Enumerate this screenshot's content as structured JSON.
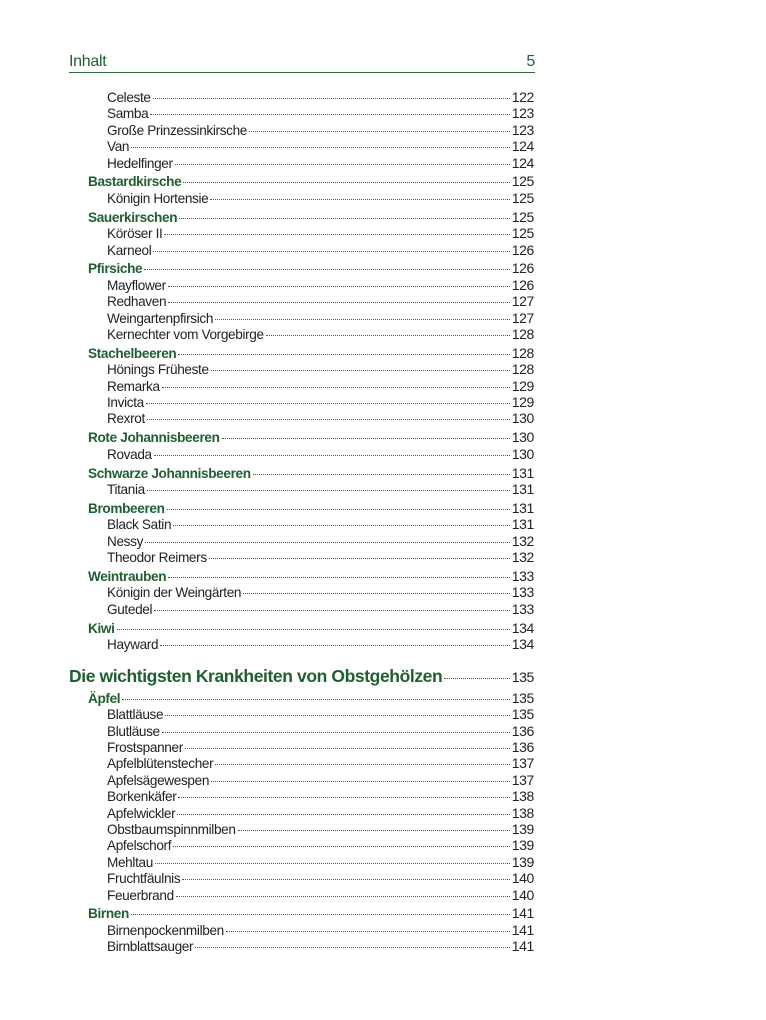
{
  "header": {
    "title": "Inhalt",
    "page_number": "5"
  },
  "colors": {
    "accent": "#1f5f30",
    "rule": "#2e6e3e"
  },
  "toc": [
    {
      "level": "sub",
      "title": "Celeste",
      "page": "122"
    },
    {
      "level": "sub",
      "title": "Samba",
      "page": "123"
    },
    {
      "level": "sub",
      "title": "Große Prinzessinkirsche",
      "page": "123"
    },
    {
      "level": "sub",
      "title": "Van",
      "page": "124"
    },
    {
      "level": "sub",
      "title": "Hedelfinger",
      "page": "124"
    },
    {
      "level": "grp",
      "title": "Bastardkirsche",
      "page": "125"
    },
    {
      "level": "sub",
      "title": "Königin Hortensie",
      "page": "125"
    },
    {
      "level": "grp",
      "title": "Sauerkirschen",
      "page": "125"
    },
    {
      "level": "sub",
      "title": "Köröser II",
      "page": "125"
    },
    {
      "level": "sub",
      "title": "Karneol",
      "page": "126"
    },
    {
      "level": "grp",
      "title": "Pfirsiche",
      "page": "126"
    },
    {
      "level": "sub",
      "title": "Mayflower",
      "page": "126"
    },
    {
      "level": "sub",
      "title": "Redhaven",
      "page": "127"
    },
    {
      "level": "sub",
      "title": "Weingartenpfirsich",
      "page": "127"
    },
    {
      "level": "sub",
      "title": "Kernechter vom Vorgebirge",
      "page": "128"
    },
    {
      "level": "grp",
      "title": "Stachelbeeren",
      "page": "128"
    },
    {
      "level": "sub",
      "title": "Hönings Früheste",
      "page": "128"
    },
    {
      "level": "sub",
      "title": "Remarka",
      "page": "129"
    },
    {
      "level": "sub",
      "title": "Invicta",
      "page": "129"
    },
    {
      "level": "sub",
      "title": "Rexrot",
      "page": "130"
    },
    {
      "level": "grp",
      "title": "Rote Johannisbeeren",
      "page": "130"
    },
    {
      "level": "sub",
      "title": "Rovada",
      "page": "130"
    },
    {
      "level": "grp",
      "title": "Schwarze Johannisbeeren",
      "page": "131"
    },
    {
      "level": "sub",
      "title": "Titania",
      "page": "131"
    },
    {
      "level": "grp",
      "title": "Brombeeren",
      "page": "131"
    },
    {
      "level": "sub",
      "title": "Black Satin",
      "page": "131"
    },
    {
      "level": "sub",
      "title": "Nessy",
      "page": "132"
    },
    {
      "level": "sub",
      "title": "Theodor Reimers",
      "page": "132"
    },
    {
      "level": "grp",
      "title": "Weintrauben",
      "page": "133"
    },
    {
      "level": "sub",
      "title": "Königin der Weingärten",
      "page": "133"
    },
    {
      "level": "sub",
      "title": "Gutedel",
      "page": "133"
    },
    {
      "level": "grp",
      "title": "Kiwi",
      "page": "134"
    },
    {
      "level": "sub",
      "title": "Hayward",
      "page": "134"
    },
    {
      "level": "chap",
      "title": "Die wichtigsten Krankheiten von Obstgehölzen",
      "page": "135"
    },
    {
      "level": "grp",
      "title": "Äpfel",
      "page": "135"
    },
    {
      "level": "sub",
      "title": "Blattläuse",
      "page": "135"
    },
    {
      "level": "sub",
      "title": "Blutläuse",
      "page": "136"
    },
    {
      "level": "sub",
      "title": "Frostspanner",
      "page": "136"
    },
    {
      "level": "sub",
      "title": "Apfelblütenstecher",
      "page": "137"
    },
    {
      "level": "sub",
      "title": "Apfelsägewespen",
      "page": "137"
    },
    {
      "level": "sub",
      "title": "Borkenkäfer",
      "page": "138"
    },
    {
      "level": "sub",
      "title": "Apfelwickler",
      "page": "138"
    },
    {
      "level": "sub",
      "title": "Obstbaumspinnmilben",
      "page": "139"
    },
    {
      "level": "sub",
      "title": "Apfelschorf",
      "page": "139"
    },
    {
      "level": "sub",
      "title": "Mehltau",
      "page": "139"
    },
    {
      "level": "sub",
      "title": "Fruchtfäulnis",
      "page": "140"
    },
    {
      "level": "sub",
      "title": "Feuerbrand",
      "page": "140"
    },
    {
      "level": "grp",
      "title": "Birnen",
      "page": "141"
    },
    {
      "level": "sub",
      "title": "Birnenpockenmilben",
      "page": "141"
    },
    {
      "level": "sub",
      "title": "Birnblattsauger",
      "page": "141"
    }
  ]
}
